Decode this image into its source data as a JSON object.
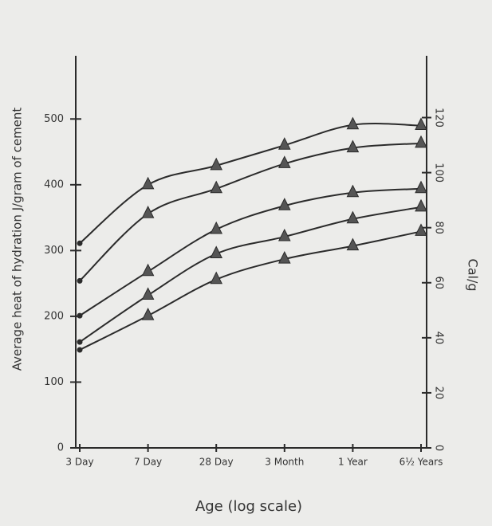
{
  "chart_data": {
    "type": "line",
    "ylabel": "Average heat of hydration J/gram of cement",
    "y2label": "Cal/g",
    "xlabel": "Age (log scale)",
    "categories": [
      "3 Day",
      "7 Day",
      "28 Day",
      "3 Month",
      "1 Year",
      "6½ Years"
    ],
    "ylim": [
      0,
      590
    ],
    "yticks": [
      0,
      100,
      200,
      300,
      400,
      500
    ],
    "y2lim": [
      0,
      141
    ],
    "y2ticks": [
      0,
      20,
      40,
      60,
      80,
      100,
      120
    ],
    "grid": false,
    "series": [
      {
        "color": "#2b2b2b",
        "values": [
          311,
          400,
          429,
          460,
          491,
          490
        ]
      },
      {
        "color": "#2b2b2b",
        "values": [
          254,
          356,
          394,
          432,
          456,
          463
        ]
      },
      {
        "color": "#2b2b2b",
        "values": [
          201,
          268,
          332,
          368,
          388,
          394
        ]
      },
      {
        "color": "#2b2b2b",
        "values": [
          161,
          232,
          295,
          321,
          348,
          366
        ]
      },
      {
        "color": "#2b2b2b",
        "values": [
          149,
          201,
          256,
          287,
          307,
          329
        ]
      }
    ]
  }
}
